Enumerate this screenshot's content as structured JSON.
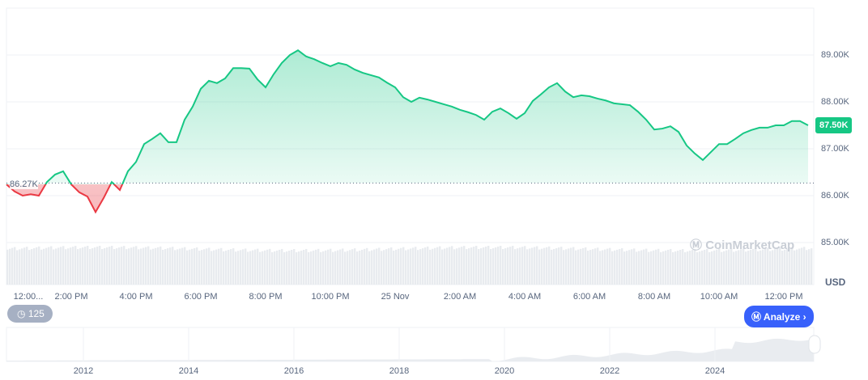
{
  "chart_data": {
    "type": "area",
    "start": "12:00 PM",
    "interval_minutes": 15,
    "values": [
      86240,
      86090,
      86000,
      86030,
      86000,
      86290,
      86450,
      86520,
      86240,
      86070,
      85980,
      85650,
      85950,
      86290,
      86120,
      86520,
      86720,
      87100,
      87210,
      87330,
      87140,
      87140,
      87620,
      87900,
      88280,
      88450,
      88400,
      88500,
      88720,
      88720,
      88710,
      88480,
      88310,
      88590,
      88830,
      89000,
      89100,
      88970,
      88910,
      88830,
      88760,
      88830,
      88790,
      88690,
      88620,
      88570,
      88520,
      88410,
      88310,
      88100,
      88000,
      88090,
      88050,
      88000,
      87950,
      87900,
      87830,
      87780,
      87720,
      87620,
      87790,
      87860,
      87760,
      87640,
      87760,
      88020,
      88160,
      88310,
      88400,
      88220,
      88100,
      88140,
      88120,
      88070,
      88030,
      87970,
      87950,
      87930,
      87790,
      87620,
      87410,
      87430,
      87480,
      87360,
      87070,
      86900,
      86760,
      86930,
      87100,
      87100,
      87210,
      87330,
      87400,
      87450,
      87450,
      87500,
      87500,
      87590,
      87590,
      87500
    ],
    "baseline": 86270,
    "baseline_label": "86.27K",
    "current_label": "87.50K",
    "ylim": [
      84800,
      89700
    ],
    "yticks": [
      {
        "v": 89000,
        "label": "89.00K"
      },
      {
        "v": 88000,
        "label": "88.00K"
      },
      {
        "v": 87000,
        "label": "87.00K"
      },
      {
        "v": 86000,
        "label": "86.00K"
      },
      {
        "v": 85000,
        "label": "85.00K"
      }
    ],
    "xticks": [
      "12:00...",
      "2:00 PM",
      "4:00 PM",
      "6:00 PM",
      "8:00 PM",
      "10:00 PM",
      "25 Nov",
      "2:00 AM",
      "4:00 AM",
      "6:00 AM",
      "8:00 AM",
      "10:00 AM",
      "12:00 PM"
    ],
    "ylabel": "USD",
    "navigator_years": [
      "2012",
      "2014",
      "2016",
      "2018",
      "2020",
      "2022",
      "2024"
    ],
    "grid": true,
    "colors": {
      "up": "#16c784",
      "down": "#ea3943",
      "volume": "#e8ebef"
    }
  },
  "history_count": "125",
  "analyze_label": "Analyze",
  "watermark": "CoinMarketCap"
}
